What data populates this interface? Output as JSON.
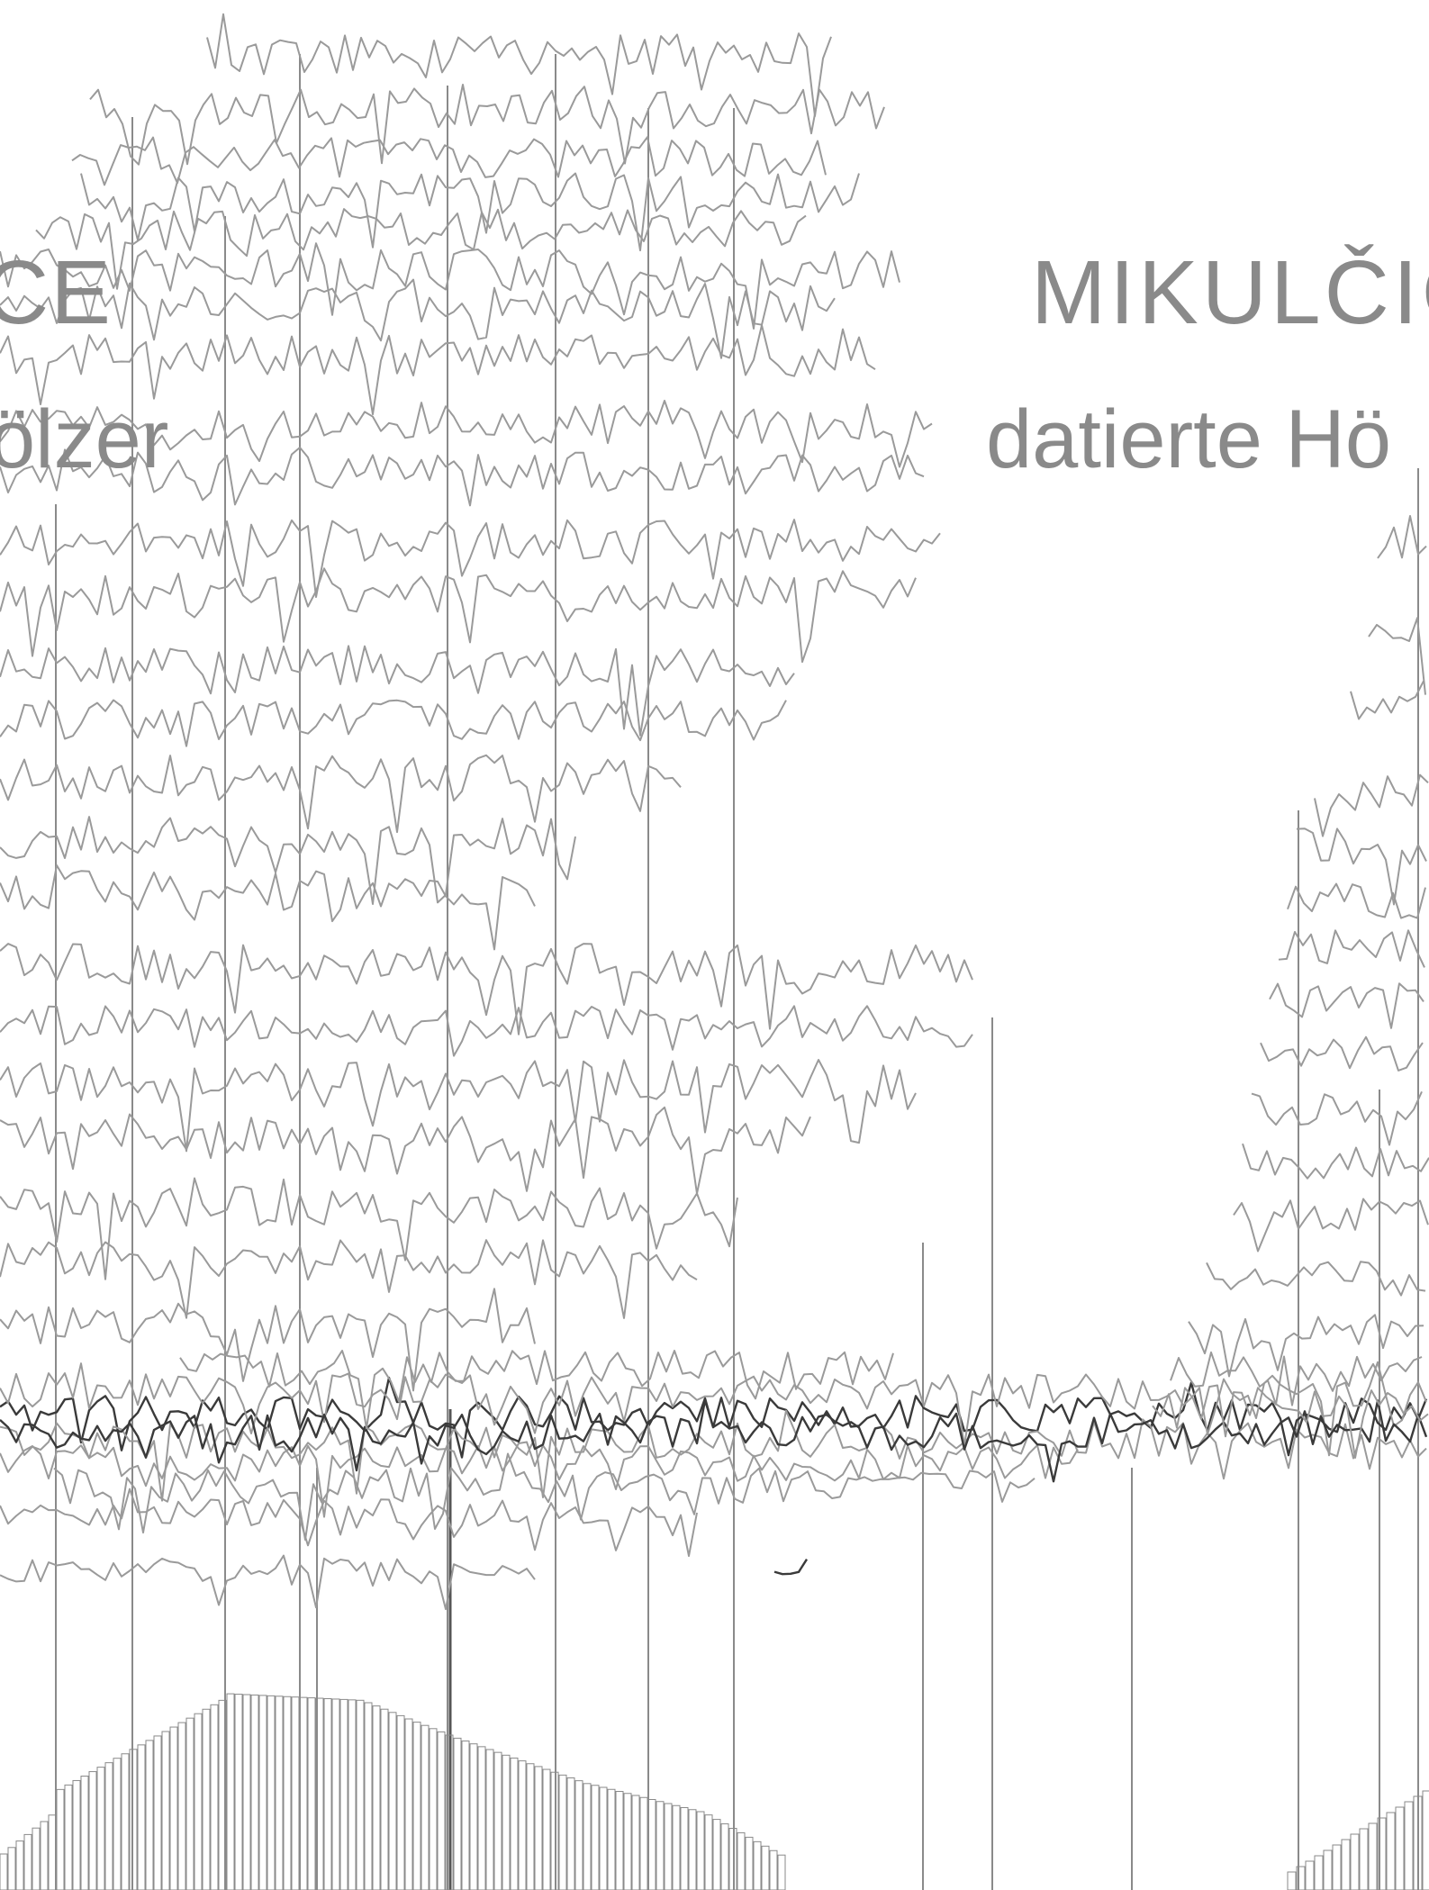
{
  "left_panel": {
    "title": "CE",
    "subtitle": "ölzer"
  },
  "right_panel": {
    "title": "MIKULČIC",
    "subtitle": "datierte Hö"
  },
  "colors": {
    "curve": "#9a9a9a",
    "curve_dark": "#3a3a3a",
    "line": "#8a8a8a",
    "text": "#8a8a8a"
  },
  "chart_data": [
    {
      "type": "line",
      "title": "CE",
      "subtitle": "ölzer",
      "description_series": "stacked tree-ring width curves (synchronised series) with vertical reference lines and a sample-depth histogram",
      "series_count": 24,
      "vertical_line_count": 9,
      "histogram_bar_count": 90
    },
    {
      "type": "line",
      "title": "MIKULČIC",
      "subtitle": "datierte Hö",
      "series_count": 18,
      "vertical_line_count": 4,
      "histogram_bar_count": 12
    }
  ]
}
